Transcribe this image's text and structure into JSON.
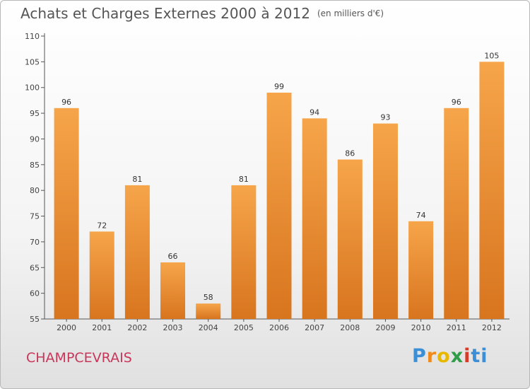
{
  "header": {
    "title": "Achats et Charges Externes 2000 à 2012",
    "unit": "(en milliers d'€)"
  },
  "footer": {
    "town": "CHAMPCEVRAIS",
    "logo": [
      "P",
      "r",
      "o",
      "x",
      "i",
      "ti"
    ]
  },
  "colors": {
    "bar_light": "#f6a54a",
    "bar_dark": "#d8751f",
    "axis": "#555555"
  },
  "chart_data": {
    "type": "bar",
    "title": "Achats et Charges Externes 2000 à 2012",
    "subtitle": "(en milliers d'€)",
    "categories": [
      "2000",
      "2001",
      "2002",
      "2003",
      "2004",
      "2005",
      "2006",
      "2007",
      "2008",
      "2009",
      "2010",
      "2011",
      "2012"
    ],
    "values": [
      96,
      72,
      81,
      66,
      58,
      81,
      99,
      94,
      86,
      93,
      74,
      96,
      105
    ],
    "ylim": [
      55,
      110
    ],
    "yticks": [
      55,
      60,
      65,
      70,
      75,
      80,
      85,
      90,
      95,
      100,
      105,
      110
    ],
    "xlabel": "",
    "ylabel": "",
    "grid": false
  }
}
